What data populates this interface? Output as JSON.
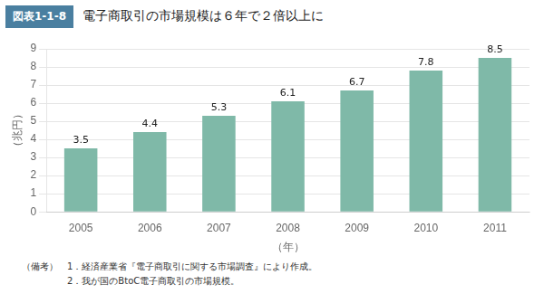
{
  "chart_data": {
    "type": "bar",
    "title": "電子商取引の市場規模は６年で２倍以上に",
    "annotations": [
      "図表1-1-8",
      "（備考）　1．経済産業省『電子商取引に関する市場調査』により作成。",
      "　　　　　2．我が国のBtoC電子商取引の市場規模。"
    ],
    "ylabel": "（兆円）",
    "xlabel": "（年）",
    "categories": [
      "2005",
      "2006",
      "2007",
      "2008",
      "2009",
      "2010",
      "2011"
    ],
    "values": [
      3.5,
      4.4,
      5.3,
      6.1,
      6.7,
      7.8,
      8.5
    ],
    "color": "#7fb9a8",
    "ylim": [
      0,
      9
    ],
    "yticks": [
      0,
      1,
      2,
      3,
      4,
      5,
      6,
      7,
      8,
      9
    ],
    "grid": true,
    "data_labels": true
  }
}
